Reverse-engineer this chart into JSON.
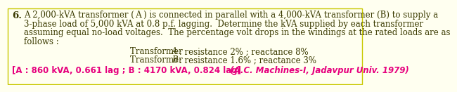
{
  "number": "6.",
  "line1": "A 2,000-kVA transformer ( A ) is connected in parallel with a 4,000-kVA transformer (B) to supply a",
  "line2": "3-phase load of 5,000 kVA at 0.8 p.f. lagging.  Determine the kVA supplied by each transformer",
  "line3": "assuming equal no-load voltages.  The percentage volt drops in the windings at the rated loads are as",
  "line4": "follows :",
  "ta_pre": "Transformer ",
  "ta_italic": "A",
  "ta_post": " : resistance 2% ; reactance 8%",
  "tb_pre": "Transformer ",
  "tb_italic": "B",
  "tb_post": " : resistance 1.6% ; reactance 3%",
  "ans_bracket": "[A : 860 kVA, 0.661 lag ; B : 4170 kVA, 0.824 lag]",
  "ans_italic": "  (A.C. Machines-I, Jadavpur Univ. 1979)",
  "text_color": "#3a3a00",
  "answer_color": "#e6007e",
  "background_color": "#fffff0",
  "border_color": "#c8c800",
  "main_fontsize": 8.5,
  "number_fontsize": 9.5
}
